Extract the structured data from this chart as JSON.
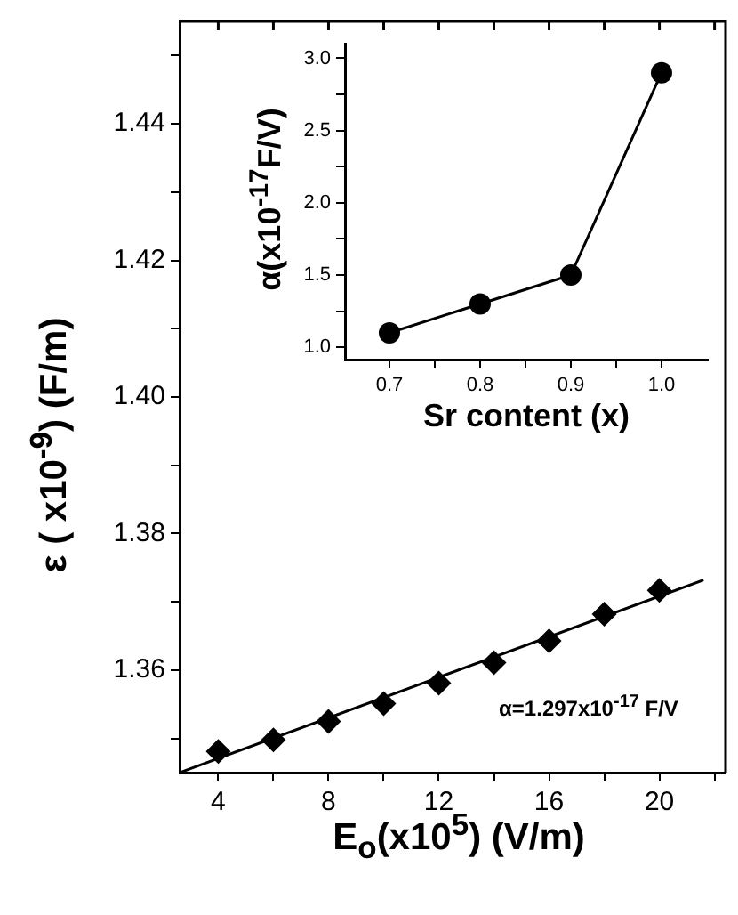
{
  "chart_data": [
    {
      "type": "scatter",
      "xlabel": "E$_{o}$(x10$^{5}$) (V/m)",
      "ylabel": "ε ( x10$^{-9}$) (F/m)",
      "x": [
        4,
        6,
        8,
        10,
        12,
        14,
        16,
        18,
        20
      ],
      "series": [
        {
          "color": "#000000",
          "marker": "diamond",
          "values": [
            1.3481,
            1.3498,
            1.3525,
            1.3551,
            1.3581,
            1.3611,
            1.3643,
            1.3682,
            1.3717
          ]
        },
        {
          "type": "line",
          "color": "#000000",
          "marker": "none",
          "x": [
            2.6,
            21.6
          ],
          "values": [
            1.345,
            1.3732
          ]
        }
      ],
      "xlim": [
        2.6,
        22.4
      ],
      "ylim": [
        1.345,
        1.455
      ],
      "xticks": [
        4,
        {
          "value": 6,
          "label": null
        },
        8,
        {
          "value": 10,
          "label": null
        },
        12,
        {
          "value": 14,
          "label": null
        },
        16,
        {
          "value": 18,
          "label": null
        },
        20,
        {
          "value": 22,
          "label": null
        }
      ],
      "yticks": [
        {
          "value": 1.35,
          "label": null
        },
        1.36,
        {
          "value": 1.37,
          "label": null
        },
        1.38,
        {
          "value": 1.39,
          "label": null
        },
        {
          "value": 1.4,
          "label": "1.40"
        },
        {
          "value": 1.41,
          "label": null
        },
        1.42,
        {
          "value": 1.43,
          "label": null
        },
        1.44,
        {
          "value": 1.45,
          "label": null
        }
      ],
      "annotations": [
        "α=1.297x10$^{-17}$ F/V"
      ]
    },
    {
      "type": "line",
      "xlabel": "Sr content (x)",
      "ylabel": "α(x10$^{-17}$F/V)",
      "marker": "circle",
      "x": [
        0.7,
        0.8,
        0.9,
        1.0
      ],
      "series": [
        {
          "color": "#000000",
          "values": [
            1.1,
            1.3,
            1.5,
            2.9
          ]
        }
      ],
      "xlim": [
        0.651,
        1.051
      ],
      "ylim": [
        0.915,
        3.1
      ],
      "xticks": [
        0.7,
        {
          "value": 0.75,
          "label": null
        },
        0.8,
        {
          "value": 0.85,
          "label": null
        },
        0.9,
        {
          "value": 0.95,
          "label": null
        },
        {
          "value": 1.0,
          "label": "1.0"
        }
      ],
      "yticks": [
        {
          "value": 1.0,
          "label": "1.0"
        },
        {
          "value": 1.25,
          "label": null
        },
        1.5,
        {
          "value": 1.75,
          "label": null
        },
        {
          "value": 2.0,
          "label": "2.0"
        },
        {
          "value": 2.25,
          "label": null
        },
        2.5,
        {
          "value": 2.75,
          "label": null
        },
        {
          "value": 3.0,
          "label": "3.0"
        }
      ]
    }
  ]
}
